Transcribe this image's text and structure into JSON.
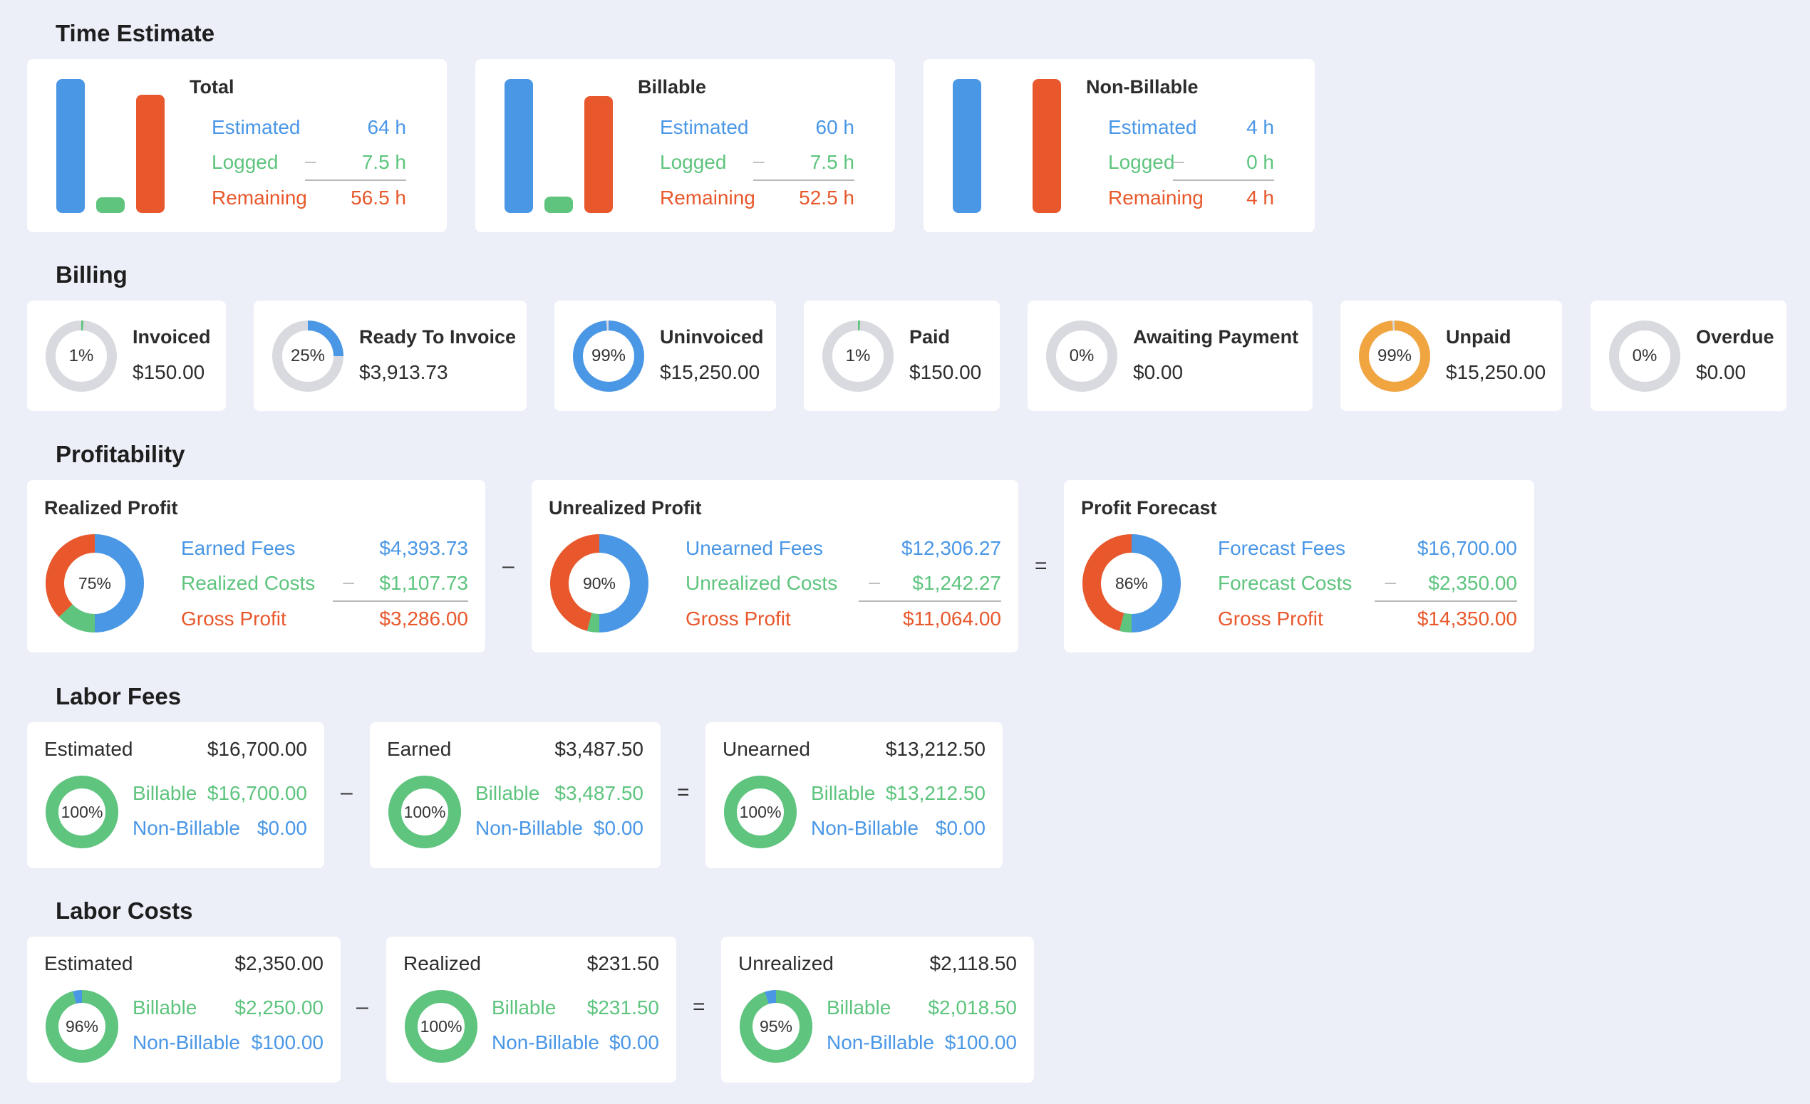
{
  "colors": {
    "blue": "#4a97e6",
    "green": "#5ec47e",
    "orange": "#e8582c",
    "amber": "#f0a541",
    "track": "#d8dadf"
  },
  "time_estimate": {
    "title": "Time Estimate",
    "labels": {
      "estimated": "Estimated",
      "logged": "Logged",
      "remaining": "Remaining",
      "minus": "–"
    },
    "cards": [
      {
        "title": "Total",
        "estimated": "64 h",
        "logged": "7.5 h",
        "remaining": "56.5 h",
        "estimated_hours": 64,
        "logged_hours": 7.5,
        "remaining_hours": 56.5
      },
      {
        "title": "Billable",
        "estimated": "60 h",
        "logged": "7.5 h",
        "remaining": "52.5 h",
        "estimated_hours": 60,
        "logged_hours": 7.5,
        "remaining_hours": 52.5
      },
      {
        "title": "Non-Billable",
        "estimated": "4 h",
        "logged": "0 h",
        "remaining": "4 h",
        "estimated_hours": 4,
        "logged_hours": 0,
        "remaining_hours": 4
      }
    ]
  },
  "billing": {
    "title": "Billing",
    "cards": [
      {
        "title": "Invoiced",
        "amount": "$150.00",
        "percent_label": "1%",
        "percent": 1,
        "color": "#5ec47e"
      },
      {
        "title": "Ready To Invoice",
        "amount": "$3,913.73",
        "percent_label": "25%",
        "percent": 25,
        "color": "#4a97e6"
      },
      {
        "title": "Uninvoiced",
        "amount": "$15,250.00",
        "percent_label": "99%",
        "percent": 99,
        "color": "#4a97e6"
      },
      {
        "title": "Paid",
        "amount": "$150.00",
        "percent_label": "1%",
        "percent": 1,
        "color": "#5ec47e"
      },
      {
        "title": "Awaiting Payment",
        "amount": "$0.00",
        "percent_label": "0%",
        "percent": 0,
        "color": "#5ec47e"
      },
      {
        "title": "Unpaid",
        "amount": "$15,250.00",
        "percent_label": "99%",
        "percent": 99,
        "color": "#f0a541"
      },
      {
        "title": "Overdue",
        "amount": "$0.00",
        "percent_label": "0%",
        "percent": 0,
        "color": "#e8582c"
      }
    ]
  },
  "profitability": {
    "title": "Profitability",
    "operators": [
      "–",
      "="
    ],
    "minus": "–",
    "cards": [
      {
        "title": "Realized Profit",
        "percent_label": "75%",
        "percent": 75,
        "row1_label": "Earned Fees",
        "row1_value": "$4,393.73",
        "row2_label": "Realized Costs",
        "row2_value": "$1,107.73",
        "row3_label": "Gross Profit",
        "row3_value": "$3,286.00"
      },
      {
        "title": "Unrealized Profit",
        "percent_label": "90%",
        "percent": 90,
        "row1_label": "Unearned Fees",
        "row1_value": "$12,306.27",
        "row2_label": "Unrealized Costs",
        "row2_value": "$1,242.27",
        "row3_label": "Gross Profit",
        "row3_value": "$11,064.00"
      },
      {
        "title": "Profit Forecast",
        "percent_label": "86%",
        "percent": 86,
        "row1_label": "Forecast Fees",
        "row1_value": "$16,700.00",
        "row2_label": "Forecast Costs",
        "row2_value": "$2,350.00",
        "row3_label": "Gross Profit",
        "row3_value": "$14,350.00"
      }
    ]
  },
  "labor_fees": {
    "title": "Labor Fees",
    "operators": [
      "–",
      "="
    ],
    "cards": [
      {
        "title": "Estimated",
        "total": "$16,700.00",
        "percent_label": "100%",
        "billable_percent": 100,
        "billable_label": "Billable",
        "billable": "$16,700.00",
        "nonbillable_label": "Non-Billable",
        "nonbillable": "$0.00"
      },
      {
        "title": "Earned",
        "total": "$3,487.50",
        "percent_label": "100%",
        "billable_percent": 100,
        "billable_label": "Billable",
        "billable": "$3,487.50",
        "nonbillable_label": "Non-Billable",
        "nonbillable": "$0.00"
      },
      {
        "title": "Unearned",
        "total": "$13,212.50",
        "percent_label": "100%",
        "billable_percent": 100,
        "billable_label": "Billable",
        "billable": "$13,212.50",
        "nonbillable_label": "Non-Billable",
        "nonbillable": "$0.00"
      }
    ]
  },
  "labor_costs": {
    "title": "Labor Costs",
    "operators": [
      "–",
      "="
    ],
    "cards": [
      {
        "title": "Estimated",
        "total": "$2,350.00",
        "percent_label": "96%",
        "billable_percent": 96,
        "billable_label": "Billable",
        "billable": "$2,250.00",
        "nonbillable_label": "Non-Billable",
        "nonbillable": "$100.00"
      },
      {
        "title": "Realized",
        "total": "$231.50",
        "percent_label": "100%",
        "billable_percent": 100,
        "billable_label": "Billable",
        "billable": "$231.50",
        "nonbillable_label": "Non-Billable",
        "nonbillable": "$0.00"
      },
      {
        "title": "Unrealized",
        "total": "$2,118.50",
        "percent_label": "95%",
        "billable_percent": 95,
        "billable_label": "Billable",
        "billable": "$2,018.50",
        "nonbillable_label": "Non-Billable",
        "nonbillable": "$100.00"
      }
    ]
  }
}
